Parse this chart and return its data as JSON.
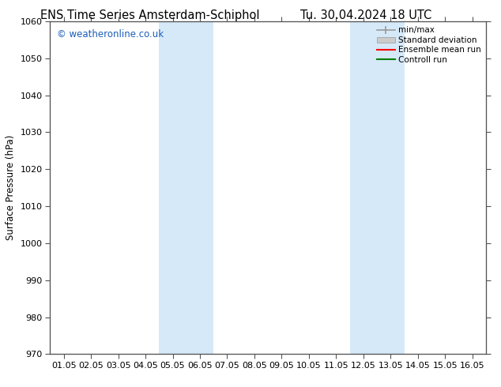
{
  "title_left": "ENS Time Series Amsterdam-Schiphol",
  "title_right": "Tu. 30.04.2024 18 UTC",
  "ylabel": "Surface Pressure (hPa)",
  "ylim": [
    970,
    1060
  ],
  "yticks": [
    970,
    980,
    990,
    1000,
    1010,
    1020,
    1030,
    1040,
    1050,
    1060
  ],
  "xtick_labels": [
    "01.05",
    "02.05",
    "03.05",
    "04.05",
    "05.05",
    "06.05",
    "07.05",
    "08.05",
    "09.05",
    "10.05",
    "11.05",
    "12.05",
    "13.05",
    "14.05",
    "15.05",
    "16.05"
  ],
  "xtick_positions": [
    0,
    1,
    2,
    3,
    4,
    5,
    6,
    7,
    8,
    9,
    10,
    11,
    12,
    13,
    14,
    15
  ],
  "xlim": [
    -0.5,
    15.5
  ],
  "shaded_bands": [
    {
      "x_start": 3.5,
      "x_end": 5.5,
      "color": "#d6e9f8"
    },
    {
      "x_start": 10.5,
      "x_end": 12.5,
      "color": "#d6e9f8"
    }
  ],
  "watermark_text": "© weatheronline.co.uk",
  "watermark_color": "#1a5eb8",
  "legend_entries": [
    {
      "label": "min/max",
      "color": "#999999",
      "type": "minmax"
    },
    {
      "label": "Standard deviation",
      "color": "#cccccc",
      "type": "band"
    },
    {
      "label": "Ensemble mean run",
      "color": "#ff0000",
      "type": "line"
    },
    {
      "label": "Controll run",
      "color": "#008000",
      "type": "line"
    }
  ],
  "bg_color": "#ffffff",
  "title_fontsize": 10.5,
  "tick_fontsize": 8,
  "ylabel_fontsize": 8.5,
  "watermark_fontsize": 8.5,
  "legend_fontsize": 7.5
}
